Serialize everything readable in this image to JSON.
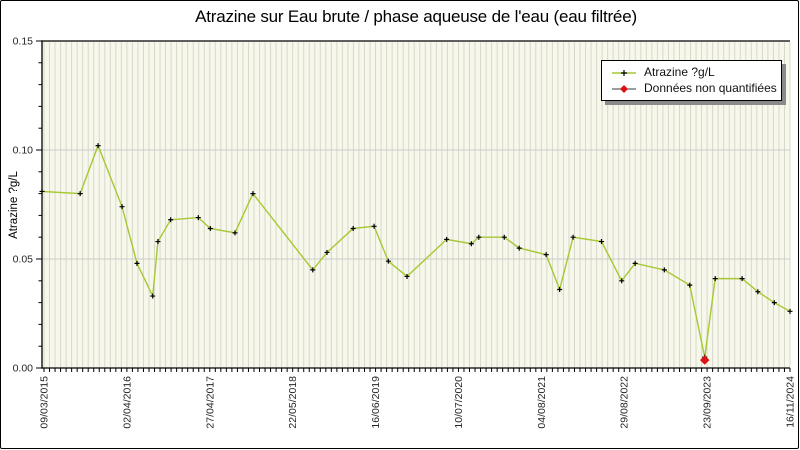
{
  "title": "Atrazine sur Eau brute / phase aqueuse de l'eau (eau filtrée)",
  "legend": {
    "items": [
      {
        "label": "Atrazine ?g/L"
      },
      {
        "label": "Données non quantifiées"
      }
    ]
  },
  "chart_data": {
    "type": "line",
    "title": "Atrazine sur Eau brute / phase aqueuse de l'eau (eau filtrée)",
    "ylabel": "Atrazine ?g/L",
    "xlabel": "",
    "ylim": [
      0,
      0.15
    ],
    "y_tick_labels": [
      "0.00",
      "0.05",
      "0.10",
      "0.15"
    ],
    "y_major_step": 0.05,
    "y_minor_step": 0.01,
    "x_tick_labels": [
      "09/03/2015",
      "02/04/2016",
      "27/04/2017",
      "22/05/2018",
      "16/06/2019",
      "10/07/2020",
      "04/08/2021",
      "29/08/2022",
      "23/09/2023",
      "16/11/2024"
    ],
    "x_ticks_between_labels": 15,
    "x_minor_tick_count": 136,
    "grid": {
      "horizontal_major": true,
      "vertical_minor_stripes": true
    },
    "legend_position": "upper right",
    "series": [
      {
        "name": "Atrazine ?g/L",
        "x_frac": [
          0.0,
          0.051,
          0.075,
          0.107,
          0.127,
          0.148,
          0.155,
          0.172,
          0.209,
          0.225,
          0.258,
          0.282,
          0.362,
          0.381,
          0.416,
          0.444,
          0.463,
          0.488,
          0.541,
          0.574,
          0.584,
          0.618,
          0.638,
          0.674,
          0.692,
          0.71,
          0.748,
          0.775,
          0.793,
          0.832,
          0.866,
          0.886,
          0.9,
          0.936,
          0.957,
          0.979,
          1.0
        ],
        "values": [
          0.081,
          0.08,
          0.102,
          0.074,
          0.048,
          0.033,
          0.058,
          0.068,
          0.069,
          0.064,
          0.062,
          0.08,
          0.045,
          0.053,
          0.064,
          0.065,
          0.049,
          0.042,
          0.059,
          0.057,
          0.06,
          0.06,
          0.055,
          0.052,
          0.036,
          0.06,
          0.058,
          0.04,
          0.048,
          0.045,
          0.038,
          0.005,
          0.041,
          0.041,
          0.035,
          0.03,
          0.026
        ],
        "non_quantified_index": 31
      }
    ],
    "colors": {
      "line": "#a6c832",
      "marker": "#000000",
      "non_quantified": "#dd1111",
      "plot_bg": "#f7f7ec",
      "stripe": "#d8d8ca",
      "grid": "#cccccc",
      "axis": "#000000",
      "text": "#262626"
    }
  }
}
